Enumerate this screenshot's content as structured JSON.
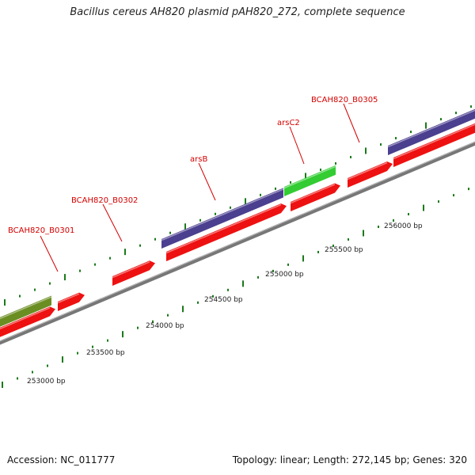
{
  "title": "Bacillus cereus AH820 plasmid pAH820_272, complete sequence",
  "footer": {
    "accession": "Accession: NC_011777",
    "summary": "Topology: linear; Length: 272,145 bp; Genes: 320"
  },
  "colors": {
    "backbone": "#7a7a7a",
    "gene_red": "#ee1111",
    "gene_blue": "#4b3f8f",
    "gene_green": "#33cc33",
    "gene_olive": "#6b8e23",
    "tick_green": "#1a7a1a",
    "label_red": "#d40000"
  },
  "gene_labels": [
    {
      "id": "bcah820-b0301",
      "text": "BCAH820_B0301"
    },
    {
      "id": "bcah820-b0302",
      "text": "BCAH820_B0302"
    },
    {
      "id": "arsb",
      "text": "arsB"
    },
    {
      "id": "arsc2",
      "text": "arsC2"
    },
    {
      "id": "bcah820-b0305",
      "text": "BCAH820_B0305"
    }
  ],
  "scale_labels": [
    {
      "id": "scale-253000",
      "text": "253000 bp"
    },
    {
      "id": "scale-253500",
      "text": "253500 bp"
    },
    {
      "id": "scale-254000",
      "text": "254000 bp"
    },
    {
      "id": "scale-254500",
      "text": "254500 bp"
    },
    {
      "id": "scale-255000",
      "text": "255000 bp"
    },
    {
      "id": "scale-255500",
      "text": "255500 bp"
    },
    {
      "id": "scale-256000",
      "text": "256000 bp"
    }
  ]
}
